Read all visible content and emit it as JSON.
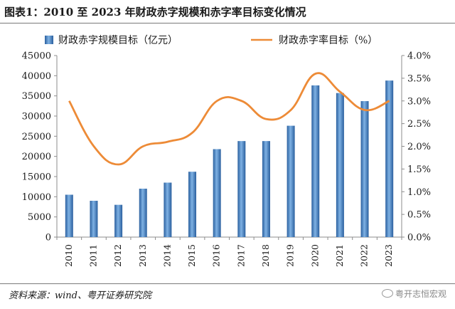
{
  "title": "图表1：2010 至 2023 年财政赤字规模和赤字率目标变化情况",
  "source": "资料来源：wind、粤开证券研究院",
  "watermark": "粤开志恒宏观",
  "colors": {
    "bar": "#4f8fcf",
    "bar_dark": "#2a5f9e",
    "line": "#ed8b37"
  },
  "chart_data": {
    "type": "bar+line",
    "categories": [
      "2010",
      "2011",
      "2012",
      "2013",
      "2014",
      "2015",
      "2016",
      "2017",
      "2018",
      "2019",
      "2020",
      "2021",
      "2022",
      "2023"
    ],
    "series": [
      {
        "name": "财政赤字规模目标（亿元）",
        "type": "bar",
        "axis": "left",
        "values": [
          10500,
          9000,
          8000,
          12000,
          13500,
          16200,
          21800,
          23800,
          23800,
          27600,
          37600,
          35700,
          33700,
          38800
        ]
      },
      {
        "name": "财政赤字率目标（%）",
        "type": "line",
        "axis": "right",
        "smooth": true,
        "values": [
          3.0,
          2.0,
          1.6,
          2.0,
          2.1,
          2.3,
          3.0,
          3.0,
          2.6,
          2.8,
          3.6,
          3.2,
          2.8,
          3.0
        ]
      }
    ],
    "left_axis": {
      "min": 0,
      "max": 45000,
      "step": 5000,
      "ticks": [
        "0",
        "5000",
        "10000",
        "15000",
        "20000",
        "25000",
        "30000",
        "35000",
        "40000",
        "45000"
      ]
    },
    "right_axis": {
      "min": 0,
      "max": 4.0,
      "step": 0.5,
      "ticks": [
        "0.0%",
        "0.5%",
        "1.0%",
        "1.5%",
        "2.0%",
        "2.5%",
        "3.0%",
        "3.5%",
        "4.0%"
      ]
    },
    "legend_position": "top",
    "grid": false
  }
}
